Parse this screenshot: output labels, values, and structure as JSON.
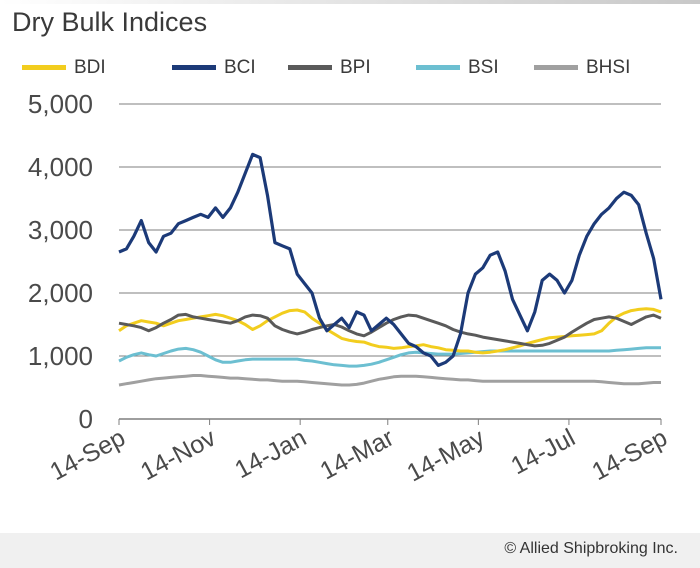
{
  "chart_data": {
    "type": "line",
    "title": "Dry Bulk Indices",
    "x_ticks": [
      "14-Sep",
      "14-Nov",
      "14-Jan",
      "14-Mar",
      "14-May",
      "14-Jul",
      "14-Sep"
    ],
    "x_tick_positions": [
      0,
      61,
      122,
      181,
      242,
      303,
      365
    ],
    "x_range": [
      0,
      365
    ],
    "y_ticks": [
      "0",
      "1,000",
      "2,000",
      "3,000",
      "4,000",
      "5,000"
    ],
    "y_tick_values": [
      0,
      1000,
      2000,
      3000,
      4000,
      5000
    ],
    "ylim": [
      0,
      5000
    ],
    "grid": true,
    "legend_position": "top",
    "series": [
      {
        "name": "BDI",
        "color": "#f2cd1e",
        "x": [
          0,
          5,
          10,
          15,
          20,
          25,
          30,
          35,
          40,
          45,
          50,
          55,
          60,
          65,
          70,
          75,
          80,
          85,
          90,
          95,
          100,
          105,
          110,
          115,
          120,
          125,
          130,
          135,
          140,
          145,
          150,
          155,
          160,
          165,
          170,
          175,
          180,
          185,
          190,
          195,
          200,
          205,
          210,
          215,
          220,
          225,
          230,
          235,
          240,
          245,
          250,
          255,
          260,
          265,
          270,
          275,
          280,
          285,
          290,
          295,
          300,
          305,
          310,
          315,
          320,
          325,
          330,
          335,
          340,
          345,
          350,
          355,
          360,
          365
        ],
        "y": [
          1400,
          1480,
          1520,
          1560,
          1540,
          1520,
          1480,
          1520,
          1560,
          1580,
          1600,
          1620,
          1640,
          1660,
          1640,
          1600,
          1560,
          1500,
          1420,
          1480,
          1560,
          1620,
          1680,
          1720,
          1730,
          1700,
          1600,
          1520,
          1420,
          1350,
          1280,
          1250,
          1230,
          1220,
          1180,
          1150,
          1140,
          1120,
          1130,
          1150,
          1160,
          1180,
          1150,
          1130,
          1100,
          1090,
          1080,
          1080,
          1060,
          1050,
          1060,
          1080,
          1100,
          1130,
          1160,
          1200,
          1230,
          1260,
          1290,
          1300,
          1310,
          1320,
          1330,
          1340,
          1350,
          1400,
          1520,
          1620,
          1680,
          1720,
          1740,
          1750,
          1740,
          1700
        ]
      },
      {
        "name": "BCI",
        "color": "#1c3a78",
        "x": [
          0,
          5,
          10,
          15,
          20,
          25,
          30,
          35,
          40,
          45,
          50,
          55,
          60,
          65,
          70,
          75,
          80,
          85,
          90,
          95,
          100,
          105,
          110,
          115,
          120,
          125,
          130,
          135,
          140,
          145,
          150,
          155,
          160,
          165,
          170,
          175,
          180,
          185,
          190,
          195,
          200,
          205,
          210,
          215,
          220,
          225,
          230,
          235,
          240,
          245,
          250,
          255,
          260,
          265,
          270,
          275,
          280,
          285,
          290,
          295,
          300,
          305,
          310,
          315,
          320,
          325,
          330,
          335,
          340,
          345,
          350,
          355,
          360,
          365
        ],
        "y": [
          2650,
          2700,
          2900,
          3150,
          2800,
          2650,
          2900,
          2950,
          3100,
          3150,
          3200,
          3250,
          3200,
          3350,
          3200,
          3350,
          3600,
          3900,
          4200,
          4150,
          3550,
          2800,
          2750,
          2700,
          2300,
          2150,
          2000,
          1600,
          1400,
          1500,
          1600,
          1450,
          1700,
          1650,
          1400,
          1500,
          1600,
          1500,
          1350,
          1200,
          1150,
          1050,
          1000,
          850,
          900,
          1000,
          1350,
          2000,
          2300,
          2400,
          2600,
          2650,
          2350,
          1900,
          1650,
          1400,
          1700,
          2200,
          2300,
          2200,
          2000,
          2200,
          2600,
          2900,
          3100,
          3250,
          3350,
          3500,
          3600,
          3550,
          3400,
          2950,
          2550,
          1900
        ]
      },
      {
        "name": "BPI",
        "color": "#5a5a5a",
        "x": [
          0,
          5,
          10,
          15,
          20,
          25,
          30,
          35,
          40,
          45,
          50,
          55,
          60,
          65,
          70,
          75,
          80,
          85,
          90,
          95,
          100,
          105,
          110,
          115,
          120,
          125,
          130,
          135,
          140,
          145,
          150,
          155,
          160,
          165,
          170,
          175,
          180,
          185,
          190,
          195,
          200,
          205,
          210,
          215,
          220,
          225,
          230,
          235,
          240,
          245,
          250,
          255,
          260,
          265,
          270,
          275,
          280,
          285,
          290,
          295,
          300,
          305,
          310,
          315,
          320,
          325,
          330,
          335,
          340,
          345,
          350,
          355,
          360,
          365
        ],
        "y": [
          1520,
          1500,
          1480,
          1450,
          1400,
          1450,
          1520,
          1580,
          1650,
          1660,
          1620,
          1600,
          1580,
          1560,
          1540,
          1520,
          1560,
          1620,
          1650,
          1640,
          1600,
          1480,
          1420,
          1380,
          1350,
          1380,
          1420,
          1450,
          1480,
          1500,
          1460,
          1400,
          1350,
          1320,
          1380,
          1450,
          1520,
          1580,
          1620,
          1650,
          1640,
          1600,
          1560,
          1520,
          1480,
          1420,
          1380,
          1350,
          1330,
          1300,
          1280,
          1260,
          1240,
          1220,
          1200,
          1180,
          1160,
          1170,
          1200,
          1250,
          1300,
          1380,
          1450,
          1520,
          1580,
          1600,
          1620,
          1600,
          1550,
          1500,
          1560,
          1620,
          1650,
          1600
        ]
      },
      {
        "name": "BSI",
        "color": "#6cbfd1",
        "x": [
          0,
          5,
          10,
          15,
          20,
          25,
          30,
          35,
          40,
          45,
          50,
          55,
          60,
          65,
          70,
          75,
          80,
          85,
          90,
          95,
          100,
          105,
          110,
          115,
          120,
          125,
          130,
          135,
          140,
          145,
          150,
          155,
          160,
          165,
          170,
          175,
          180,
          185,
          190,
          195,
          200,
          205,
          210,
          215,
          220,
          225,
          230,
          235,
          240,
          245,
          250,
          255,
          260,
          265,
          270,
          275,
          280,
          285,
          290,
          295,
          300,
          305,
          310,
          315,
          320,
          325,
          330,
          335,
          340,
          345,
          350,
          355,
          360,
          365
        ],
        "y": [
          920,
          980,
          1020,
          1050,
          1020,
          1000,
          1040,
          1080,
          1110,
          1120,
          1100,
          1060,
          1000,
          940,
          900,
          900,
          920,
          940,
          950,
          950,
          950,
          950,
          950,
          950,
          950,
          930,
          920,
          900,
          880,
          860,
          850,
          840,
          840,
          850,
          870,
          900,
          940,
          980,
          1020,
          1050,
          1060,
          1050,
          1040,
          1030,
          1030,
          1030,
          1040,
          1050,
          1060,
          1070,
          1080,
          1080,
          1080,
          1080,
          1080,
          1080,
          1080,
          1080,
          1080,
          1080,
          1080,
          1080,
          1080,
          1080,
          1080,
          1080,
          1080,
          1090,
          1100,
          1110,
          1120,
          1130,
          1130,
          1130
        ]
      },
      {
        "name": "BHSI",
        "color": "#a0a0a0",
        "x": [
          0,
          5,
          10,
          15,
          20,
          25,
          30,
          35,
          40,
          45,
          50,
          55,
          60,
          65,
          70,
          75,
          80,
          85,
          90,
          95,
          100,
          105,
          110,
          115,
          120,
          125,
          130,
          135,
          140,
          145,
          150,
          155,
          160,
          165,
          170,
          175,
          180,
          185,
          190,
          195,
          200,
          205,
          210,
          215,
          220,
          225,
          230,
          235,
          240,
          245,
          250,
          255,
          260,
          265,
          270,
          275,
          280,
          285,
          290,
          295,
          300,
          305,
          310,
          315,
          320,
          325,
          330,
          335,
          340,
          345,
          350,
          355,
          360,
          365
        ],
        "y": [
          540,
          560,
          580,
          600,
          620,
          640,
          650,
          660,
          670,
          680,
          690,
          690,
          680,
          670,
          660,
          650,
          650,
          640,
          630,
          620,
          620,
          610,
          600,
          600,
          600,
          590,
          580,
          570,
          560,
          550,
          540,
          540,
          550,
          570,
          600,
          630,
          650,
          670,
          680,
          680,
          680,
          670,
          660,
          650,
          640,
          630,
          620,
          620,
          610,
          600,
          600,
          600,
          600,
          600,
          600,
          600,
          600,
          600,
          600,
          600,
          600,
          600,
          600,
          600,
          600,
          590,
          580,
          570,
          560,
          560,
          560,
          570,
          580,
          580
        ]
      }
    ]
  },
  "footer": {
    "copyright": "© Allied Shipbroking Inc."
  }
}
